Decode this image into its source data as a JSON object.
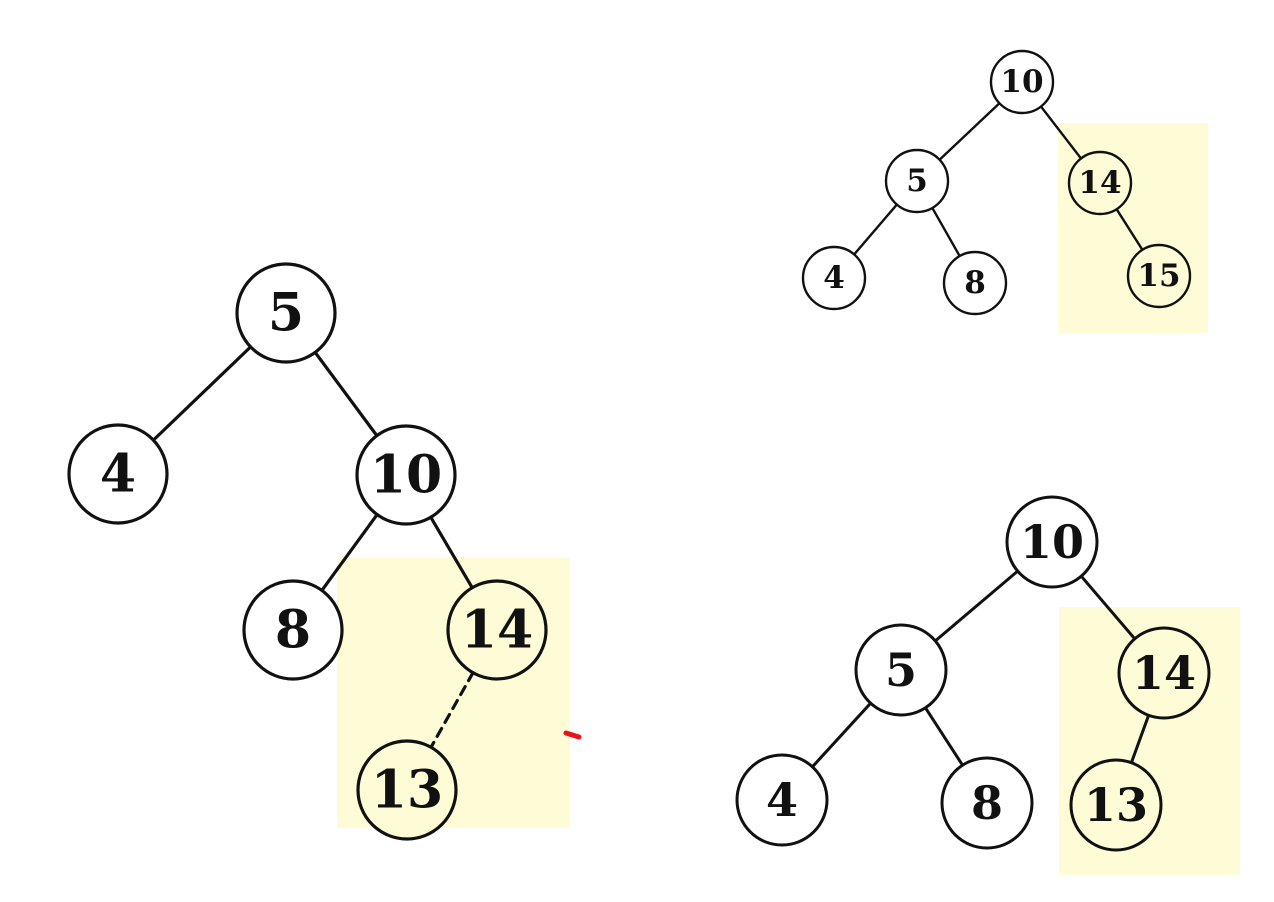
{
  "colors": {
    "highlight": "#fdfcd6",
    "node_fill": "#ffffff",
    "edge": "#111111",
    "marker": "#e8141c"
  },
  "trees": [
    {
      "id": "left-tree",
      "nodes": [
        {
          "id": "L5",
          "label": "5"
        },
        {
          "id": "L4",
          "label": "4"
        },
        {
          "id": "L10",
          "label": "10"
        },
        {
          "id": "L8",
          "label": "8"
        },
        {
          "id": "L14",
          "label": "14"
        },
        {
          "id": "L13",
          "label": "13"
        }
      ],
      "edges": [
        {
          "from": "L5",
          "to": "L4"
        },
        {
          "from": "L5",
          "to": "L10"
        },
        {
          "from": "L10",
          "to": "L8"
        },
        {
          "from": "L10",
          "to": "L14"
        },
        {
          "from": "L14",
          "to": "L13",
          "dashed": true
        }
      ]
    },
    {
      "id": "top-right-tree",
      "nodes": [
        {
          "id": "T10",
          "label": "10"
        },
        {
          "id": "T5",
          "label": "5"
        },
        {
          "id": "T14",
          "label": "14"
        },
        {
          "id": "T4",
          "label": "4"
        },
        {
          "id": "T8",
          "label": "8"
        },
        {
          "id": "T15",
          "label": "15"
        }
      ],
      "edges": [
        {
          "from": "T10",
          "to": "T5"
        },
        {
          "from": "T10",
          "to": "T14"
        },
        {
          "from": "T5",
          "to": "T4"
        },
        {
          "from": "T5",
          "to": "T8"
        },
        {
          "from": "T14",
          "to": "T15"
        }
      ]
    },
    {
      "id": "bottom-right-tree",
      "nodes": [
        {
          "id": "B10",
          "label": "10"
        },
        {
          "id": "B5",
          "label": "5"
        },
        {
          "id": "B14",
          "label": "14"
        },
        {
          "id": "B4",
          "label": "4"
        },
        {
          "id": "B8",
          "label": "8"
        },
        {
          "id": "B13",
          "label": "13"
        }
      ],
      "edges": [
        {
          "from": "B10",
          "to": "B5"
        },
        {
          "from": "B10",
          "to": "B14"
        },
        {
          "from": "B5",
          "to": "B4"
        },
        {
          "from": "B5",
          "to": "B8"
        },
        {
          "from": "B14",
          "to": "B13"
        }
      ]
    }
  ]
}
